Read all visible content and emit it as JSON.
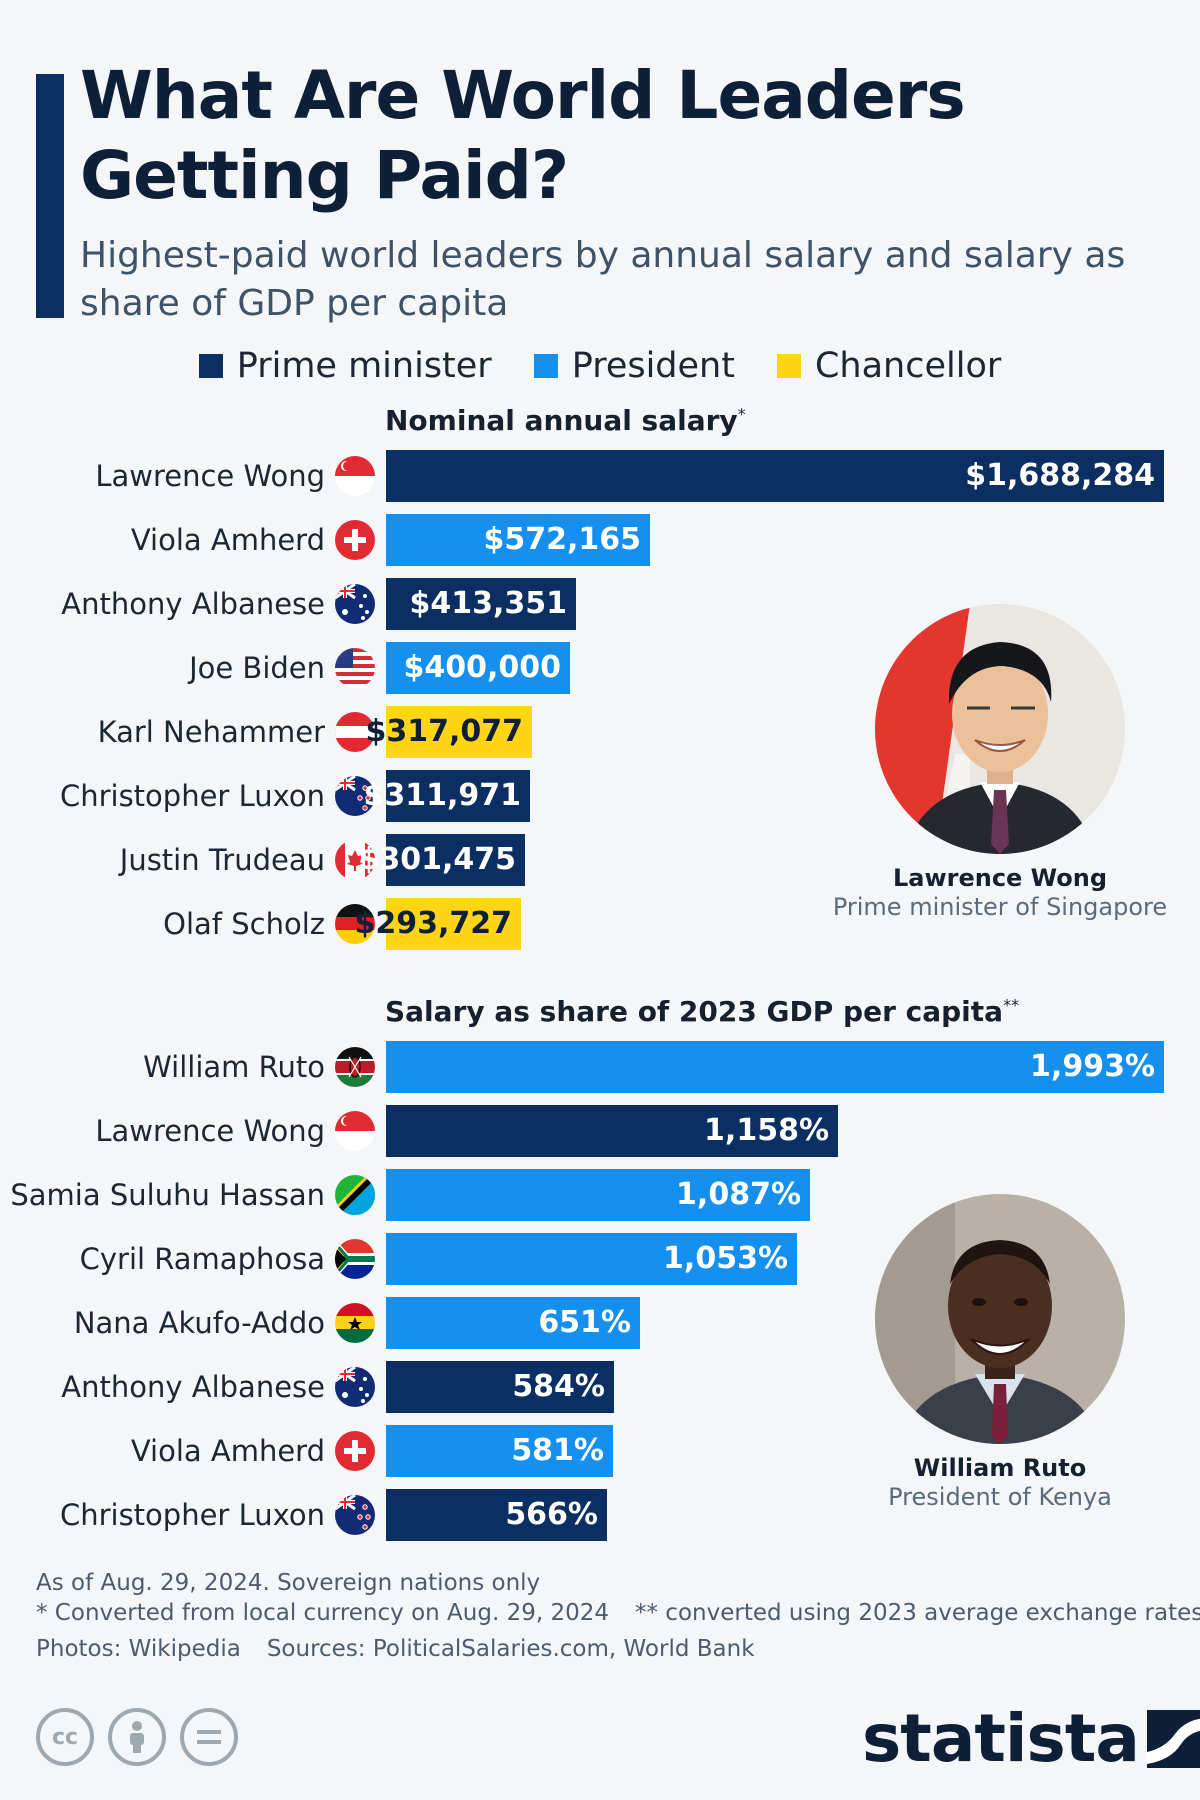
{
  "title": "What Are World Leaders Getting Paid?",
  "subtitle": "Highest-paid world leaders by annual salary and salary as share of GDP per capita",
  "legend": [
    {
      "label": "Prime minister",
      "color": "#0c2f63",
      "key": "pm"
    },
    {
      "label": "President",
      "color": "#1590ee",
      "key": "president"
    },
    {
      "label": "Chancellor",
      "color": "#ffd516",
      "key": "chancellor"
    }
  ],
  "chart_data": [
    {
      "type": "bar",
      "orientation": "horizontal",
      "title": "Nominal annual salary",
      "title_marker": "*",
      "unit": "USD",
      "categories": [
        "Lawrence Wong",
        "Viola Amherd",
        "Anthony Albanese",
        "Joe Biden",
        "Karl Nehammer",
        "Christopher Luxon",
        "Justin Trudeau",
        "Olaf Scholz"
      ],
      "values": [
        1688284,
        572165,
        413351,
        400000,
        317077,
        311971,
        301475,
        293727
      ],
      "labels": [
        "$1,688,284",
        "$572,165",
        "$413,351",
        "$400,000",
        "$317,077",
        "$311,971",
        "$301,475",
        "$293,727"
      ],
      "roles": [
        "pm",
        "president",
        "pm",
        "president",
        "chancellor",
        "pm",
        "pm",
        "chancellor"
      ],
      "flags": [
        "singapore-flag",
        "switzerland-flag",
        "australia-flag",
        "usa-flag",
        "austria-flag",
        "new-zealand-flag",
        "canada-flag",
        "germany-flag"
      ],
      "xlim": [
        0,
        1688284
      ]
    },
    {
      "type": "bar",
      "orientation": "horizontal",
      "title": "Salary as share of 2023 GDP per capita",
      "title_marker": "**",
      "unit": "%",
      "categories": [
        "William Ruto",
        "Lawrence Wong",
        "Samia Suluhu Hassan",
        "Cyril Ramaphosa",
        "Nana Akufo-Addo",
        "Anthony Albanese",
        "Viola Amherd",
        "Christopher Luxon"
      ],
      "values": [
        1993,
        1158,
        1087,
        1053,
        651,
        584,
        581,
        566
      ],
      "labels": [
        "1,993%",
        "1,158%",
        "1,087%",
        "1,053%",
        "651%",
        "584%",
        "581%",
        "566%"
      ],
      "roles": [
        "president",
        "pm",
        "president",
        "president",
        "president",
        "pm",
        "president",
        "pm"
      ],
      "flags": [
        "kenya-flag",
        "singapore-flag",
        "tanzania-flag",
        "south-africa-flag",
        "ghana-flag",
        "australia-flag",
        "switzerland-flag",
        "new-zealand-flag"
      ],
      "xlim": [
        0,
        1993
      ]
    }
  ],
  "portraits": [
    {
      "name": "Lawrence Wong",
      "role": "Prime minister of Singapore"
    },
    {
      "name": "William Ruto",
      "role": "President of Kenya"
    }
  ],
  "footer": {
    "line1": "As of Aug. 29, 2024. Sovereign nations only",
    "note1": "* Converted from local currency on Aug. 29, 2024",
    "note2": "** converted using 2023 average exchange rates",
    "photos": "Photos: Wikipedia",
    "sources": "Sources: PoliticalSalaries.com, World Bank"
  },
  "logo": "statista",
  "license_icons": [
    "cc-icon",
    "attribution-icon",
    "no-derivatives-icon"
  ]
}
